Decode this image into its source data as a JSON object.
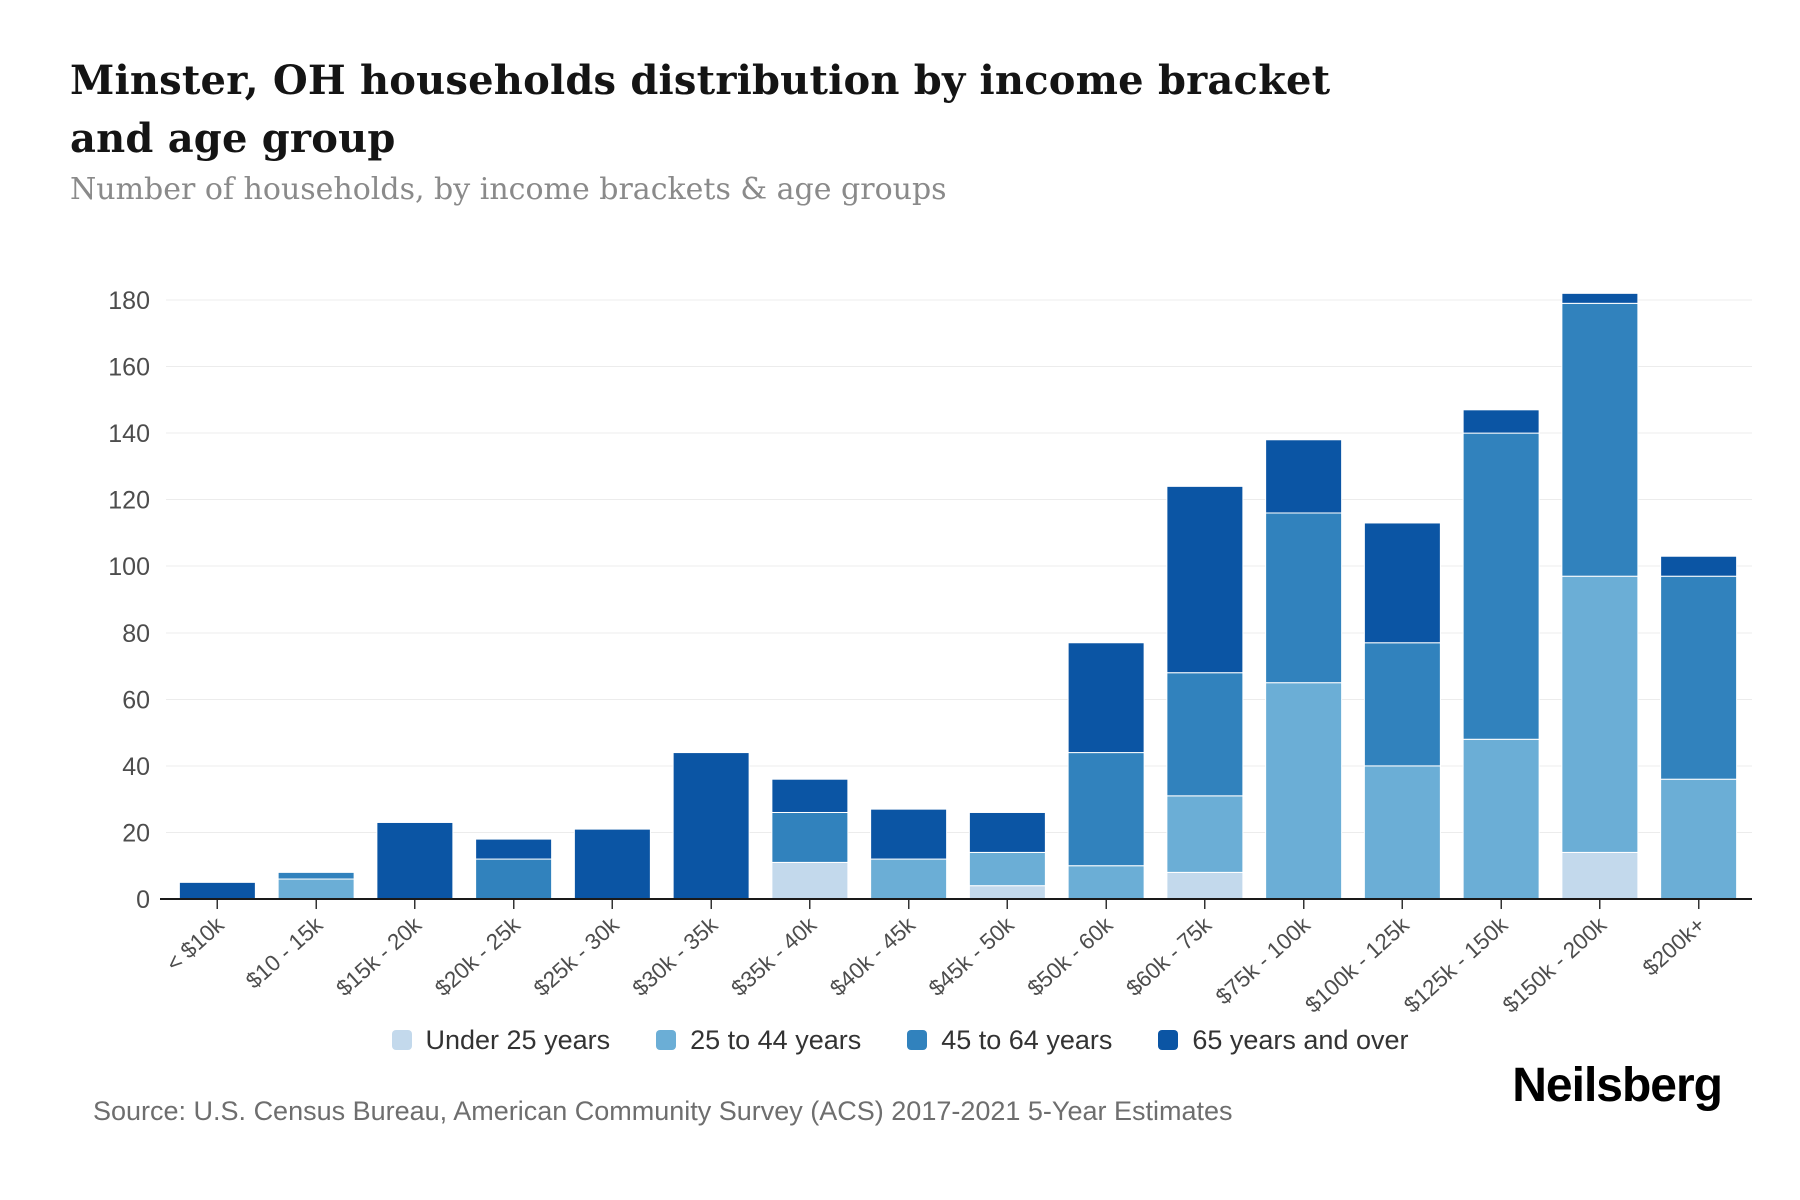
{
  "header": {
    "title": "Minster, OH households distribution by income bracket and age group",
    "subtitle": "Number of households, by income brackets & age groups"
  },
  "chart_data": {
    "type": "bar",
    "stacked": true,
    "title": "Minster, OH households distribution by income bracket and age group",
    "subtitle": "Number of households, by income brackets & age groups",
    "categories": [
      "< $10k",
      "$10 - 15k",
      "$15k - 20k",
      "$20k - 25k",
      "$25k - 30k",
      "$30k - 35k",
      "$35k - 40k",
      "$40k - 45k",
      "$45k - 50k",
      "$50k - 60k",
      "$60k - 75k",
      "$75k - 100k",
      "$100k - 125k",
      "$125k - 150k",
      "$150k - 200k",
      "$200k+"
    ],
    "series": [
      {
        "name": "Under 25 years",
        "color": "#c3d9ec",
        "values": [
          0,
          0,
          0,
          0,
          0,
          0,
          11,
          0,
          4,
          0,
          8,
          0,
          0,
          0,
          14,
          0
        ]
      },
      {
        "name": "25 to 44 years",
        "color": "#6baed6",
        "values": [
          0,
          6,
          0,
          0,
          0,
          0,
          0,
          12,
          10,
          10,
          23,
          65,
          40,
          48,
          83,
          36
        ]
      },
      {
        "name": "45 to 64 years",
        "color": "#3182bd",
        "values": [
          0,
          2,
          0,
          12,
          0,
          0,
          15,
          0,
          0,
          34,
          37,
          51,
          37,
          92,
          82,
          61
        ]
      },
      {
        "name": "65 years and over",
        "color": "#0b55a4",
        "values": [
          5,
          0,
          23,
          6,
          21,
          44,
          10,
          15,
          12,
          33,
          56,
          22,
          36,
          7,
          3,
          6
        ]
      }
    ],
    "totals": [
      5,
      8,
      23,
      18,
      21,
      44,
      36,
      27,
      26,
      77,
      124,
      138,
      113,
      147,
      182,
      103
    ],
    "xlabel": "",
    "ylabel": "",
    "ylim": [
      0,
      180
    ],
    "ytick_step": 20,
    "yticks": [
      "0",
      "20",
      "40",
      "60",
      "80",
      "100",
      "120",
      "140",
      "160",
      "180"
    ],
    "grid": true,
    "gridline_color": "#ececec",
    "axis_label_color": "#4d4d4d",
    "legend_position": "bottom"
  },
  "footer": {
    "source": "Source: U.S. Census Bureau, American Community Survey (ACS) 2017-2021 5-Year Estimates",
    "brand": "Neilsberg"
  }
}
